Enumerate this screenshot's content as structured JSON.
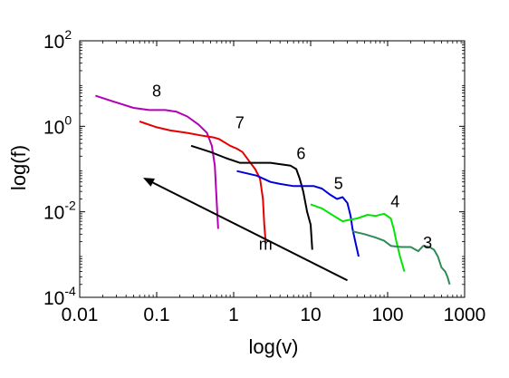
{
  "chart_data": {
    "type": "line",
    "xlabel": "log(v)",
    "ylabel": "log(f)",
    "x_scale": "log",
    "y_scale": "log",
    "xlim": [
      0.01,
      1000
    ],
    "ylim": [
      0.0001,
      100
    ],
    "x_ticks": [
      {
        "value": 0.01,
        "label": "0.01"
      },
      {
        "value": 0.1,
        "label": "0.1"
      },
      {
        "value": 1,
        "label": "1"
      },
      {
        "value": 10,
        "label": "10"
      },
      {
        "value": 100,
        "label": "100"
      },
      {
        "value": 1000,
        "label": "1000"
      }
    ],
    "y_ticks": [
      {
        "value": 0.0001,
        "base": "10",
        "exp": "-4"
      },
      {
        "value": 0.01,
        "base": "10",
        "exp": "-2"
      },
      {
        "value": 1,
        "base": "10",
        "exp": "0"
      },
      {
        "value": 100,
        "base": "10",
        "exp": "2"
      }
    ],
    "grid": false,
    "series": [
      {
        "name": "8",
        "color": "#b400b4",
        "label_at": [
          0.1,
          5.0
        ],
        "points": [
          [
            0.016,
            5.2
          ],
          [
            0.03,
            3.6
          ],
          [
            0.05,
            2.7
          ],
          [
            0.08,
            2.4
          ],
          [
            0.13,
            2.4
          ],
          [
            0.18,
            2.2
          ],
          [
            0.25,
            1.7
          ],
          [
            0.35,
            1.1
          ],
          [
            0.45,
            0.7
          ],
          [
            0.52,
            0.35
          ],
          [
            0.57,
            0.12
          ],
          [
            0.6,
            0.02
          ],
          [
            0.63,
            0.004
          ]
        ]
      },
      {
        "name": "7",
        "color": "#e60000",
        "label_at": [
          1.2,
          0.9
        ],
        "points": [
          [
            0.06,
            1.3
          ],
          [
            0.1,
            0.95
          ],
          [
            0.15,
            0.8
          ],
          [
            0.25,
            0.7
          ],
          [
            0.4,
            0.6
          ],
          [
            0.55,
            0.55
          ],
          [
            0.65,
            0.5
          ],
          [
            0.9,
            0.35
          ],
          [
            1.1,
            0.3
          ],
          [
            1.3,
            0.25
          ],
          [
            1.6,
            0.15
          ],
          [
            1.9,
            0.1
          ],
          [
            2.2,
            0.06
          ],
          [
            2.4,
            0.02
          ],
          [
            2.5,
            0.005
          ],
          [
            2.6,
            0.002
          ]
        ]
      },
      {
        "name": "6",
        "color": "#000000",
        "label_at": [
          7.5,
          0.17
        ],
        "points": [
          [
            0.28,
            0.35
          ],
          [
            0.5,
            0.25
          ],
          [
            0.8,
            0.18
          ],
          [
            1.2,
            0.14
          ],
          [
            2,
            0.14
          ],
          [
            3,
            0.14
          ],
          [
            4,
            0.13
          ],
          [
            5.5,
            0.12
          ],
          [
            6.5,
            0.1
          ],
          [
            7.2,
            0.06
          ],
          [
            8,
            0.03
          ],
          [
            9,
            0.01
          ],
          [
            10,
            0.005
          ],
          [
            10.5,
            0.0013
          ]
        ]
      },
      {
        "name": "5",
        "color": "#0000dc",
        "label_at": [
          23,
          0.034
        ],
        "points": [
          [
            1.1,
            0.09
          ],
          [
            2,
            0.07
          ],
          [
            3,
            0.05
          ],
          [
            4,
            0.045
          ],
          [
            6,
            0.04
          ],
          [
            8,
            0.04
          ],
          [
            11,
            0.04
          ],
          [
            14,
            0.035
          ],
          [
            18,
            0.025
          ],
          [
            22,
            0.02
          ],
          [
            26,
            0.022
          ],
          [
            30,
            0.016
          ],
          [
            33,
            0.008
          ],
          [
            35,
            0.004
          ],
          [
            38,
            0.002
          ],
          [
            42,
            0.0009
          ]
        ]
      },
      {
        "name": "4",
        "color": "#00e600",
        "label_at": [
          125,
          0.013
        ],
        "points": [
          [
            10,
            0.015
          ],
          [
            14,
            0.012
          ],
          [
            20,
            0.008
          ],
          [
            26,
            0.006
          ],
          [
            32,
            0.0065
          ],
          [
            40,
            0.007
          ],
          [
            55,
            0.0085
          ],
          [
            70,
            0.008
          ],
          [
            90,
            0.009
          ],
          [
            110,
            0.007
          ],
          [
            120,
            0.004
          ],
          [
            130,
            0.002
          ],
          [
            145,
            0.0009
          ],
          [
            165,
            0.0004
          ]
        ]
      },
      {
        "name": "3",
        "color": "#2e8b57",
        "label_at": [
          330,
          0.0014
        ],
        "points": [
          [
            35,
            0.0035
          ],
          [
            50,
            0.003
          ],
          [
            70,
            0.0025
          ],
          [
            90,
            0.0021
          ],
          [
            110,
            0.0016
          ],
          [
            150,
            0.0015
          ],
          [
            200,
            0.0015
          ],
          [
            250,
            0.0012
          ],
          [
            290,
            0.0016
          ],
          [
            350,
            0.0015
          ],
          [
            400,
            0.0013
          ],
          [
            450,
            0.0009
          ],
          [
            500,
            0.0005
          ],
          [
            560,
            0.0004
          ],
          [
            600,
            0.0003
          ],
          [
            640,
            0.0002
          ]
        ]
      }
    ],
    "annotations": [
      {
        "type": "arrow",
        "from": [
          30,
          0.00025
        ],
        "to": [
          0.07,
          0.06
        ],
        "label": "m",
        "label_at": [
          2.6,
          0.0013
        ]
      }
    ]
  }
}
